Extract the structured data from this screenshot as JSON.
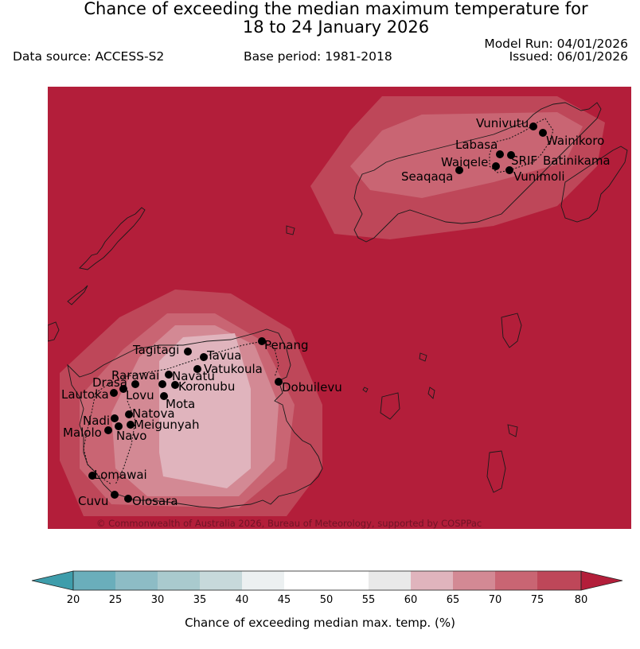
{
  "title": {
    "line1": "Chance of exceeding the median maximum temperature for",
    "line2": "18 to 24 January 2026"
  },
  "meta": {
    "data_source": "Data source: ACCESS-S2",
    "base_period": "Base period: 1981-2018",
    "model_run": "Model Run: 04/01/2026",
    "issued": "Issued: 06/01/2026"
  },
  "credit": "© Commonwealth of Australia 2026, Bureau of Meteorology, supported by COSPPac",
  "colors": {
    "background_level": "#b31e3a",
    "levels": [
      "#3e9dab",
      "#6aaebb",
      "#8dbcc5",
      "#a9cace",
      "#c7d9db",
      "#ecf0f1",
      "#ffffff",
      "#ffffff",
      "#e9e9e9",
      "#e0b4bd",
      "#d38994",
      "#c96573",
      "#be4759",
      "#b31e3a"
    ]
  },
  "locations": [
    {
      "name": "Vunivutu"
    },
    {
      "name": "Wainikoro"
    },
    {
      "name": "Labasa"
    },
    {
      "name": "SRIF"
    },
    {
      "name": "Batinikama"
    },
    {
      "name": "Waiqele"
    },
    {
      "name": "Seaqaqa"
    },
    {
      "name": "Vunimoli"
    },
    {
      "name": "Penang"
    },
    {
      "name": "Tagitagi"
    },
    {
      "name": "Tavua"
    },
    {
      "name": "Vatukoula"
    },
    {
      "name": "Rarawai"
    },
    {
      "name": "Navatu"
    },
    {
      "name": "Drasa"
    },
    {
      "name": "Koronubu"
    },
    {
      "name": "Lautoka"
    },
    {
      "name": "Lovu"
    },
    {
      "name": "Mota"
    },
    {
      "name": "Dobuilevu"
    },
    {
      "name": "Natova"
    },
    {
      "name": "Nadi"
    },
    {
      "name": "Meigunyah"
    },
    {
      "name": "Malolo"
    },
    {
      "name": "Navo"
    },
    {
      "name": "Lomawai"
    },
    {
      "name": "Cuvu"
    },
    {
      "name": "Olosara"
    }
  ],
  "colorbar": {
    "ticks": [
      "20",
      "25",
      "30",
      "35",
      "40",
      "45",
      "50",
      "55",
      "60",
      "65",
      "70",
      "75",
      "80"
    ],
    "label": "Chance of exceeding median max. temp. (%)"
  }
}
